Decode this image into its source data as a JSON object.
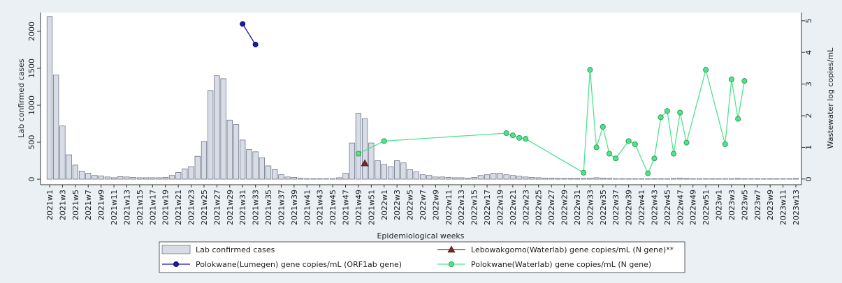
{
  "chart_data": {
    "type": "combo",
    "xlabel": "Epidemiological weeks",
    "ylabel": "Lab confirmed cases",
    "y2label": "Wastewater log copies/mL",
    "categories": [
      "2021w1",
      null,
      "2021w3",
      null,
      "2021w5",
      null,
      "2021w7",
      null,
      "2021w9",
      null,
      "2021w11",
      null,
      "2021w13",
      null,
      "2021w15",
      null,
      "2021w17",
      null,
      "2021w19",
      null,
      "2021w21",
      null,
      "2021w23",
      null,
      "2021w25",
      null,
      "2021w27",
      null,
      "2021w29",
      null,
      "2021w31",
      null,
      "2021w33",
      null,
      "2021w35",
      null,
      "2021w37",
      null,
      "2021w39",
      null,
      "2021w41",
      null,
      "2021w43",
      null,
      "2021w45",
      null,
      "2021w47",
      null,
      "2021w49",
      null,
      "2021w51",
      null,
      "2022w1",
      null,
      "2022w3",
      null,
      "2022w5",
      null,
      "2022w7",
      null,
      "2022w9",
      null,
      "2022w11",
      null,
      "2022w13",
      null,
      "2022w15",
      null,
      "2022w17",
      null,
      "2022w19",
      null,
      "2022w21",
      null,
      "2022w23",
      null,
      "2022w25",
      null,
      "2022w27",
      null,
      "2022w29",
      null,
      "2022w31",
      null,
      "2022w33",
      null,
      "2022w35",
      null,
      "2022w37",
      null,
      "2022w39",
      null,
      "2022w41",
      null,
      "2022w43",
      null,
      "2022w45",
      null,
      "2022w47",
      null,
      "2022w49",
      null,
      "2022w51",
      null,
      "2023w1",
      null,
      "2023w3",
      null,
      "2023w5",
      null,
      "2023w7",
      null,
      "2023w9",
      null,
      "2023w11",
      null,
      "2023w13"
    ],
    "ylim": [
      -75,
      2255
    ],
    "yticks": [
      0,
      500,
      1000,
      1500,
      2000
    ],
    "y2lim": [
      -0.18,
      5.26
    ],
    "y2ticks": [
      0,
      1,
      2,
      3,
      4,
      5
    ],
    "legend": "bottom",
    "series": [
      {
        "name": "Lab confirmed cases",
        "type": "bar",
        "axis": "y",
        "color": "#d7dce6",
        "edge": "#5f6677",
        "values": [
          2200,
          1410,
          720,
          330,
          190,
          110,
          80,
          50,
          45,
          30,
          20,
          35,
          30,
          25,
          20,
          20,
          20,
          20,
          25,
          50,
          90,
          140,
          170,
          310,
          510,
          1200,
          1400,
          1360,
          800,
          740,
          530,
          400,
          370,
          290,
          180,
          130,
          60,
          30,
          25,
          15,
          5,
          5,
          5,
          5,
          5,
          20,
          80,
          490,
          890,
          820,
          490,
          250,
          200,
          170,
          250,
          220,
          130,
          100,
          60,
          50,
          30,
          30,
          25,
          20,
          20,
          15,
          25,
          50,
          60,
          80,
          80,
          60,
          50,
          40,
          30,
          25,
          20,
          15,
          15,
          10,
          10,
          10,
          10,
          10,
          15,
          20,
          15,
          10,
          5,
          5,
          5,
          5,
          5,
          5,
          5,
          5,
          5,
          10,
          15,
          10,
          5,
          5,
          5,
          5,
          5,
          5,
          5,
          10,
          5,
          5,
          5,
          5,
          5,
          5,
          5,
          5,
          10
        ]
      },
      {
        "name": "Lebowakgomo(Waterlab) gene copies/mL (N gene)**",
        "type": "line",
        "axis": "y2",
        "color": "#7a2626",
        "marker": "triangle",
        "connect_gaps": true,
        "values": [
          null,
          null,
          null,
          null,
          null,
          null,
          null,
          null,
          null,
          null,
          null,
          null,
          null,
          null,
          null,
          null,
          null,
          null,
          null,
          null,
          null,
          null,
          null,
          null,
          null,
          null,
          null,
          null,
          null,
          null,
          null,
          null,
          null,
          null,
          null,
          null,
          null,
          null,
          null,
          null,
          null,
          null,
          null,
          null,
          null,
          null,
          null,
          null,
          null,
          0.5,
          null,
          null,
          null,
          null,
          null,
          null,
          null,
          null,
          null,
          null,
          null,
          null,
          null,
          null,
          null,
          null,
          null,
          null,
          null,
          null,
          null,
          null,
          null,
          null,
          null,
          null,
          null,
          null,
          null,
          null,
          null,
          null,
          null,
          null,
          null,
          null,
          null,
          null,
          null,
          null,
          null,
          null,
          null,
          null,
          null,
          null,
          null,
          null,
          null,
          null,
          null,
          null,
          null,
          null,
          null,
          null,
          null,
          null,
          null,
          null,
          null,
          null,
          null,
          null,
          null,
          null,
          null
        ]
      },
      {
        "name": "Polokwane(Lumegen) gene copies/mL (ORF1ab gene)",
        "type": "line",
        "axis": "y2",
        "color": "#1a1aa8",
        "marker": "circle",
        "connect_gaps": true,
        "values": [
          null,
          null,
          null,
          null,
          null,
          null,
          null,
          null,
          null,
          null,
          null,
          null,
          null,
          null,
          null,
          null,
          null,
          null,
          null,
          null,
          null,
          null,
          null,
          null,
          null,
          null,
          null,
          null,
          null,
          null,
          4.9,
          null,
          4.25,
          null,
          null,
          null,
          null,
          null,
          null,
          null,
          null,
          null,
          null,
          null,
          null,
          null,
          null,
          null,
          null,
          null,
          null,
          null,
          null,
          null,
          null,
          null,
          null,
          null,
          null,
          null,
          null,
          null,
          null,
          null,
          null,
          null,
          null,
          null,
          null,
          null,
          null,
          null,
          null,
          null,
          null,
          null,
          null,
          null,
          null,
          null,
          null,
          null,
          null,
          null,
          null,
          null,
          null,
          null,
          null,
          null,
          null,
          null,
          null,
          null,
          null,
          null,
          null,
          null,
          null,
          null,
          null,
          null,
          null,
          null,
          null,
          null,
          null,
          null,
          null,
          null,
          null,
          null,
          null,
          null,
          null,
          null,
          null
        ]
      },
      {
        "name": "Polokwane(Waterlab) gene copies/mL (N gene)",
        "type": "line",
        "axis": "y2",
        "color": "#4fe38c",
        "marker": "circle",
        "connect_gaps": true,
        "values": [
          null,
          null,
          null,
          null,
          null,
          null,
          null,
          null,
          null,
          null,
          null,
          null,
          null,
          null,
          null,
          null,
          null,
          null,
          null,
          null,
          null,
          null,
          null,
          null,
          null,
          null,
          null,
          null,
          null,
          null,
          null,
          null,
          null,
          null,
          null,
          null,
          null,
          null,
          null,
          null,
          null,
          null,
          null,
          null,
          null,
          null,
          null,
          null,
          0.8,
          null,
          null,
          null,
          1.2,
          null,
          null,
          null,
          null,
          null,
          null,
          null,
          null,
          null,
          null,
          null,
          null,
          null,
          null,
          null,
          null,
          null,
          null,
          1.45,
          1.38,
          1.3,
          1.27,
          null,
          null,
          null,
          null,
          null,
          null,
          null,
          null,
          0.2,
          3.45,
          1.0,
          1.65,
          0.8,
          0.65,
          null,
          1.2,
          1.1,
          null,
          0.18,
          0.65,
          1.95,
          2.15,
          0.8,
          2.1,
          1.15,
          null,
          null,
          3.45,
          null,
          null,
          1.1,
          3.15,
          1.9,
          3.1,
          null,
          null,
          null,
          null,
          null,
          null,
          null,
          null
        ]
      }
    ]
  }
}
